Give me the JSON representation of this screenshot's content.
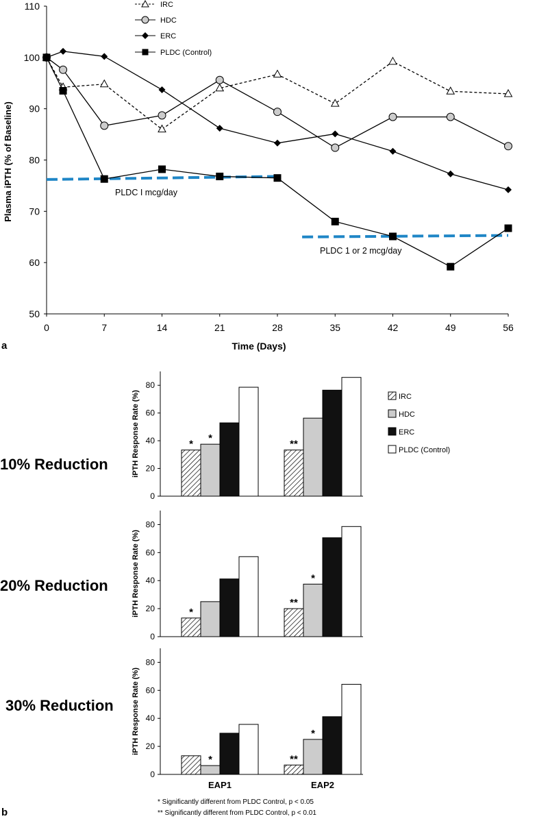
{
  "colors": {
    "dashed_line": "#1f86c6",
    "hdc_fill": "#cccccc",
    "erc_fill": "#111111",
    "control_fill": "#ffffff"
  },
  "panel_labels": {
    "a": "a",
    "b": "b"
  },
  "footnotes": {
    "single": "* Significantly different from PLDC Control, p < 0.05",
    "double": "** Significantly different from PLDC Control, p < 0.01"
  },
  "chart_data": [
    {
      "type": "line",
      "title": "",
      "xlabel": "Time (Days)",
      "ylabel": "Plasma iPTH (% of Baseline)",
      "xticks": [
        0,
        7,
        14,
        21,
        28,
        35,
        42,
        49,
        56
      ],
      "yticks": [
        50,
        60,
        70,
        80,
        90,
        100,
        110
      ],
      "xlim": [
        0,
        56
      ],
      "ylim": [
        50,
        110
      ],
      "legend_position": "top",
      "series": [
        {
          "name": "IRC",
          "marker": "triangle",
          "style": "dashed",
          "x": [
            0,
            2,
            7,
            14,
            21,
            28,
            35,
            42,
            49,
            56
          ],
          "values": [
            100,
            94.2,
            94.8,
            86,
            94,
            96.7,
            91,
            99.2,
            93.4,
            92.9
          ]
        },
        {
          "name": "HDC",
          "marker": "circle",
          "style": "solid",
          "x": [
            0,
            2,
            7,
            14,
            21,
            28,
            35,
            42,
            49,
            56
          ],
          "values": [
            100,
            97.6,
            86.7,
            88.7,
            95.6,
            89.4,
            82.4,
            88.4,
            88.4,
            82.7
          ]
        },
        {
          "name": "ERC",
          "marker": "diamond",
          "style": "solid",
          "x": [
            0,
            2,
            7,
            14,
            21,
            28,
            35,
            42,
            49,
            56
          ],
          "values": [
            100,
            101.2,
            100.2,
            93.7,
            86.2,
            83.3,
            85.1,
            81.7,
            77.3,
            74.2
          ]
        },
        {
          "name": "PLDC (Control)",
          "marker": "square",
          "style": "solid",
          "x": [
            0,
            2,
            7,
            14,
            21,
            28,
            35,
            42,
            49,
            56
          ],
          "values": [
            100,
            93.5,
            76.3,
            78.2,
            76.8,
            76.5,
            68,
            65.1,
            59.2,
            66.7
          ]
        }
      ],
      "reference_lines": [
        {
          "label": "PLDC  I mcg/day",
          "x": [
            0,
            28
          ],
          "values": [
            76.2,
            76.8
          ]
        },
        {
          "label": "PLDC  1 or 2 mcg/day",
          "x": [
            31,
            56
          ],
          "values": [
            65,
            65.3
          ]
        }
      ]
    },
    {
      "type": "bar",
      "title": "10% Reduction",
      "ylabel": "iPTH Response Rate (%)",
      "categories": [
        "EAP1",
        "EAP2"
      ],
      "ylim": [
        0,
        90
      ],
      "yticks": [
        0,
        20,
        40,
        60,
        80
      ],
      "legend_position": "right",
      "series": [
        {
          "name": "IRC",
          "values": [
            33.3,
            33.3
          ],
          "annotations": [
            "*",
            "**"
          ]
        },
        {
          "name": "HDC",
          "values": [
            37.5,
            56.3
          ],
          "annotations": [
            "*",
            ""
          ]
        },
        {
          "name": "ERC",
          "values": [
            52.9,
            76.5
          ],
          "annotations": [
            "",
            ""
          ]
        },
        {
          "name": "PLDC (Control)",
          "values": [
            78.6,
            85.7
          ],
          "annotations": [
            "",
            ""
          ]
        }
      ]
    },
    {
      "type": "bar",
      "title": "20% Reduction",
      "ylabel": "iPTH Response Rate (%)",
      "categories": [
        "EAP1",
        "EAP2"
      ],
      "ylim": [
        0,
        90
      ],
      "yticks": [
        0,
        20,
        40,
        60,
        80
      ],
      "series": [
        {
          "name": "IRC",
          "values": [
            13.3,
            20
          ],
          "annotations": [
            "*",
            "**"
          ]
        },
        {
          "name": "HDC",
          "values": [
            25,
            37.5
          ],
          "annotations": [
            "",
            "*"
          ]
        },
        {
          "name": "ERC",
          "values": [
            41.2,
            70.6
          ],
          "annotations": [
            "",
            ""
          ]
        },
        {
          "name": "PLDC (Control)",
          "values": [
            57.1,
            78.6
          ],
          "annotations": [
            "",
            ""
          ]
        }
      ]
    },
    {
      "type": "bar",
      "title": "30% Reduction",
      "ylabel": "iPTH Response Rate (%)",
      "categories": [
        "EAP1",
        "EAP2"
      ],
      "ylim": [
        0,
        90
      ],
      "yticks": [
        0,
        20,
        40,
        60,
        80
      ],
      "series": [
        {
          "name": "IRC",
          "values": [
            13.3,
            6.7
          ],
          "annotations": [
            "",
            "**"
          ]
        },
        {
          "name": "HDC",
          "values": [
            6.3,
            25
          ],
          "annotations": [
            "*",
            "*"
          ]
        },
        {
          "name": "ERC",
          "values": [
            29.4,
            41.2
          ],
          "annotations": [
            "",
            ""
          ]
        },
        {
          "name": "PLDC (Control)",
          "values": [
            35.7,
            64.3
          ],
          "annotations": [
            "",
            ""
          ]
        }
      ]
    }
  ]
}
